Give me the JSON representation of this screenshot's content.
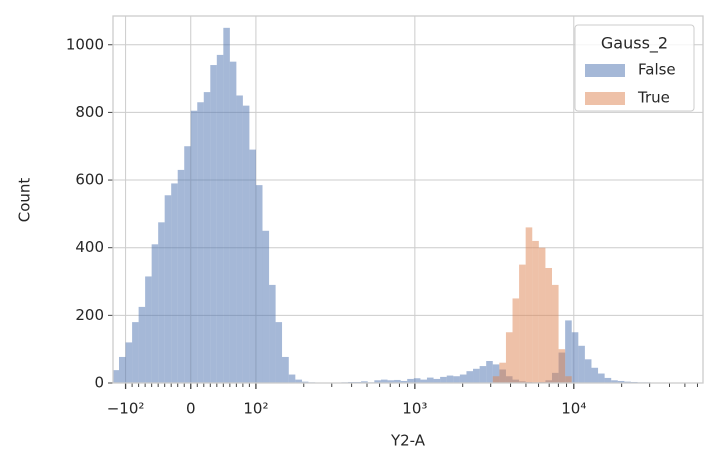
{
  "chart_data": {
    "type": "histogram",
    "xlabel": "Y2-A",
    "ylabel": "Count",
    "xscale": "symlog",
    "linthresh": 100,
    "xlim": [
      -120,
      65000
    ],
    "ylim": [
      0,
      1085
    ],
    "xticks": [
      {
        "value": -100,
        "label": "−10²"
      },
      0,
      {
        "value": 100,
        "label": "10²"
      },
      {
        "value": 1000,
        "label": "10³"
      },
      {
        "value": 10000,
        "label": "10⁴"
      }
    ],
    "xminorticks": [
      -90,
      -80,
      -70,
      -60,
      -50,
      -40,
      -30,
      -20,
      -10,
      10,
      20,
      30,
      40,
      50,
      60,
      70,
      80,
      90,
      200,
      300,
      400,
      500,
      600,
      700,
      800,
      900,
      2000,
      3000,
      4000,
      5000,
      6000,
      7000,
      8000,
      9000,
      20000,
      30000,
      40000,
      50000,
      60000
    ],
    "yticks": [
      0,
      200,
      400,
      600,
      800,
      1000
    ],
    "grid": true,
    "legend_title": "Gauss_2",
    "legend_loc": "upper right",
    "bins": [
      -120,
      -110,
      -100,
      -90,
      -80,
      -70,
      -60,
      -50,
      -40,
      -30,
      -20,
      -10,
      0,
      10,
      20,
      30,
      40,
      50,
      60,
      70,
      80,
      90,
      100,
      110,
      121,
      133,
      146,
      161,
      177,
      195,
      214,
      236,
      259,
      285,
      314,
      345,
      380,
      418,
      459,
      505,
      556,
      612,
      673,
      740,
      814,
      895,
      985,
      1084,
      1192,
      1311,
      1442,
      1587,
      1745,
      1920,
      2112,
      2323,
      2556,
      2811,
      3092,
      3401,
      3742,
      4116,
      4527,
      4980,
      5478,
      6026,
      6629,
      7292,
      8021,
      8823,
      9705,
      10676,
      11743,
      12918,
      14210,
      15631,
      17194,
      18913,
      20804,
      22885,
      25174,
      27691,
      30460,
      33506,
      36857,
      40543,
      44597,
      49057,
      53962,
      59358,
      65000
    ],
    "series": [
      {
        "name": "False",
        "color": "#4c72b0",
        "values": [
          38,
          77,
          120,
          180,
          225,
          315,
          410,
          475,
          555,
          590,
          630,
          700,
          805,
          830,
          860,
          940,
          970,
          1050,
          950,
          850,
          820,
          690,
          585,
          450,
          290,
          180,
          77,
          25,
          10,
          4,
          2,
          0,
          1,
          1,
          0,
          2,
          3,
          3,
          5,
          2,
          8,
          10,
          8,
          9,
          6,
          12,
          14,
          10,
          16,
          12,
          18,
          22,
          20,
          25,
          35,
          42,
          50,
          65,
          55,
          40,
          20,
          10,
          5,
          3,
          2,
          3,
          8,
          30,
          90,
          185,
          150,
          110,
          70,
          45,
          28,
          15,
          8,
          6,
          4,
          3,
          2,
          2,
          1,
          1,
          0,
          1,
          0,
          0,
          0,
          0
        ]
      },
      {
        "name": "True",
        "color": "#dd8452",
        "values": [
          0,
          0,
          0,
          0,
          0,
          0,
          0,
          0,
          0,
          0,
          0,
          0,
          0,
          0,
          0,
          0,
          0,
          0,
          0,
          0,
          0,
          0,
          0,
          0,
          0,
          0,
          0,
          0,
          0,
          0,
          0,
          0,
          0,
          0,
          0,
          0,
          0,
          0,
          0,
          0,
          0,
          0,
          0,
          0,
          0,
          0,
          0,
          0,
          0,
          0,
          0,
          0,
          0,
          0,
          0,
          0,
          0,
          0,
          20,
          60,
          150,
          250,
          350,
          460,
          420,
          400,
          340,
          290,
          100,
          20,
          0,
          0,
          0,
          0,
          0,
          0,
          0,
          0,
          0,
          0,
          0,
          0,
          0,
          0,
          0,
          0,
          0,
          0,
          0,
          0
        ]
      }
    ]
  }
}
